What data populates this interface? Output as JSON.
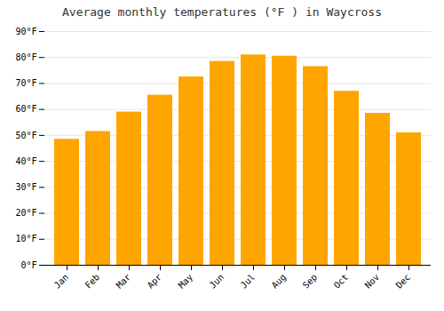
{
  "chart_data": {
    "type": "bar",
    "title": "Average monthly temperatures (°F ) in Waycross",
    "categories": [
      "Jan",
      "Feb",
      "Mar",
      "Apr",
      "May",
      "Jun",
      "Jul",
      "Aug",
      "Sep",
      "Oct",
      "Nov",
      "Dec"
    ],
    "values": [
      48.5,
      51.5,
      59.0,
      65.5,
      72.5,
      78.5,
      81.0,
      80.5,
      76.5,
      67.0,
      58.5,
      51.0
    ],
    "color": "#FFA500",
    "ylim": [
      0,
      90
    ],
    "yticks": [
      {
        "value": 0,
        "label": "0°F"
      },
      {
        "value": 10,
        "label": "10°F"
      },
      {
        "value": 20,
        "label": "20°F"
      },
      {
        "value": 30,
        "label": "30°F"
      },
      {
        "value": 40,
        "label": "40°F"
      },
      {
        "value": 50,
        "label": "50°F"
      },
      {
        "value": 60,
        "label": "60°F"
      },
      {
        "value": 70,
        "label": "70°F"
      },
      {
        "value": 80,
        "label": "80°F"
      },
      {
        "value": 90,
        "label": "90°F"
      }
    ],
    "grid": true
  }
}
